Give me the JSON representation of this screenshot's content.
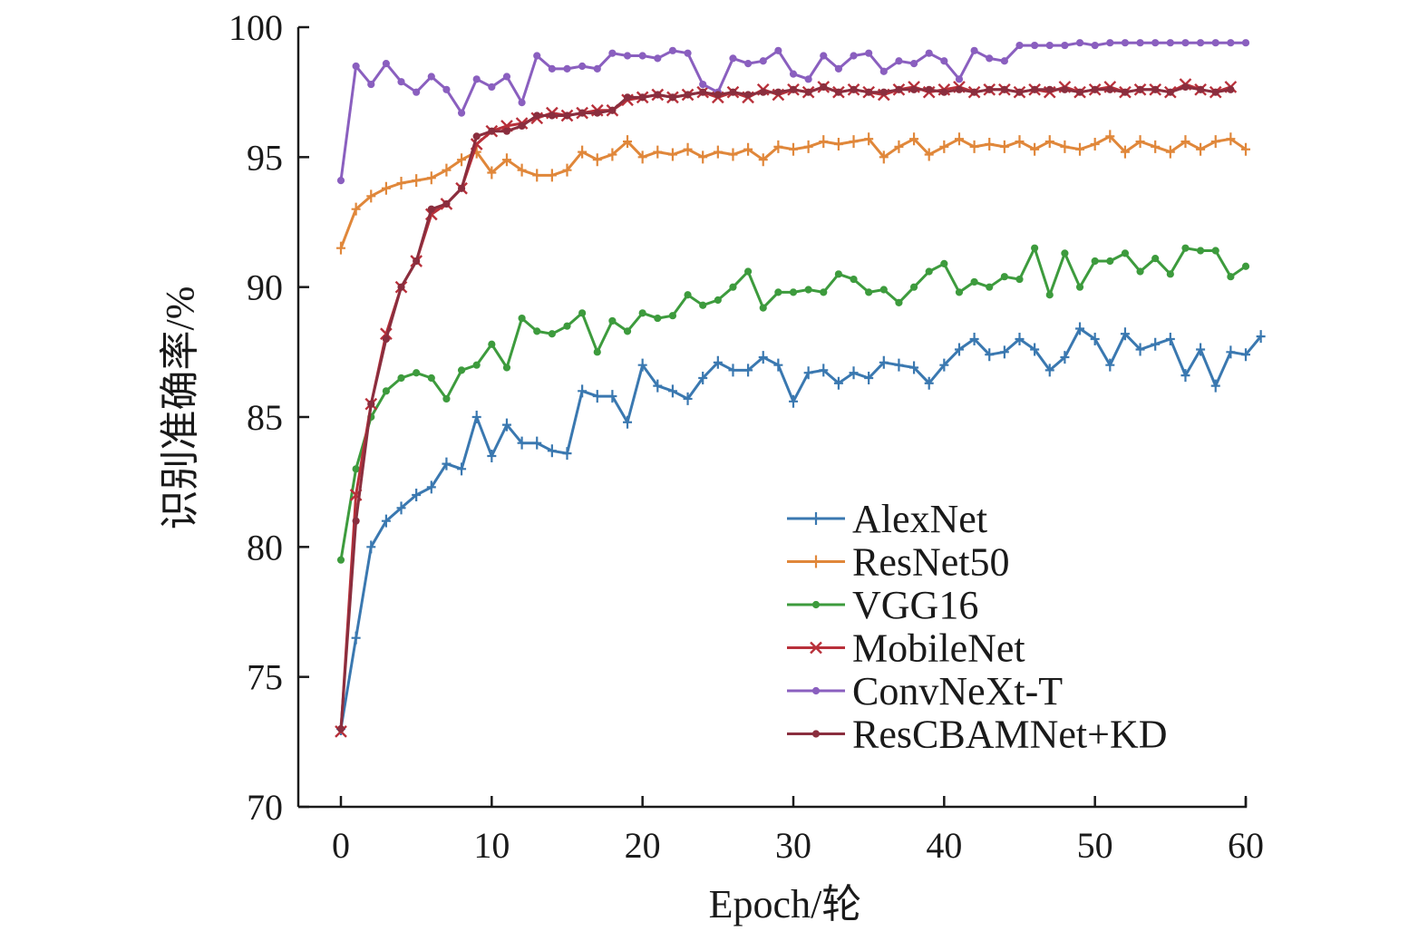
{
  "chart_data": {
    "type": "line",
    "xlabel": "Epoch/轮",
    "ylabel": "识别准确率/%",
    "xlim": [
      0,
      60
    ],
    "ylim": [
      70,
      100
    ],
    "xticks": [
      0,
      10,
      20,
      30,
      40,
      50,
      60
    ],
    "yticks": [
      70,
      75,
      80,
      85,
      90,
      95,
      100
    ],
    "legend_position": "lower-right",
    "grid": false,
    "series": [
      {
        "name": "AlexNet",
        "color": "#3a78b0",
        "marker": "plus",
        "values": [
          73.0,
          76.5,
          80.0,
          81.0,
          81.5,
          82.0,
          82.3,
          83.2,
          83.0,
          85.0,
          83.5,
          84.7,
          84.0,
          84.0,
          83.7,
          83.6,
          86.0,
          85.8,
          85.8,
          84.8,
          87.0,
          86.2,
          86.0,
          85.7,
          86.5,
          87.1,
          86.8,
          86.8,
          87.3,
          87.0,
          85.6,
          86.7,
          86.8,
          86.3,
          86.7,
          86.5,
          87.1,
          87.0,
          86.9,
          86.3,
          87.0,
          87.6,
          88.0,
          87.4,
          87.5,
          88.0,
          87.6,
          86.8,
          87.3,
          88.4,
          88.0,
          87.0,
          88.2,
          87.6,
          87.8,
          88.0,
          86.6,
          87.6,
          86.2,
          87.5,
          87.4,
          88.1
        ]
      },
      {
        "name": "ResNet50",
        "color": "#e0873a",
        "marker": "plus",
        "values": [
          91.5,
          93.0,
          93.5,
          93.8,
          94.0,
          94.1,
          94.2,
          94.5,
          94.9,
          95.2,
          94.4,
          94.9,
          94.5,
          94.3,
          94.3,
          94.5,
          95.2,
          94.9,
          95.1,
          95.6,
          95.0,
          95.2,
          95.1,
          95.3,
          95.0,
          95.2,
          95.1,
          95.3,
          94.9,
          95.4,
          95.3,
          95.4,
          95.6,
          95.5,
          95.6,
          95.7,
          95.0,
          95.4,
          95.7,
          95.1,
          95.4,
          95.7,
          95.4,
          95.5,
          95.4,
          95.6,
          95.3,
          95.6,
          95.4,
          95.3,
          95.5,
          95.8,
          95.2,
          95.6,
          95.4,
          95.2,
          95.6,
          95.3,
          95.6,
          95.7,
          95.3
        ]
      },
      {
        "name": "VGG16",
        "color": "#3d9b3d",
        "marker": "dot",
        "values": [
          79.5,
          83.0,
          85.0,
          86.0,
          86.5,
          86.7,
          86.5,
          85.7,
          86.8,
          87.0,
          87.8,
          86.9,
          88.8,
          88.3,
          88.2,
          88.5,
          89.0,
          87.5,
          88.7,
          88.3,
          89.0,
          88.8,
          88.9,
          89.7,
          89.3,
          89.5,
          90.0,
          90.6,
          89.2,
          89.8,
          89.8,
          89.9,
          89.8,
          90.5,
          90.3,
          89.8,
          89.9,
          89.4,
          90.0,
          90.6,
          90.9,
          89.8,
          90.2,
          90.0,
          90.4,
          90.3,
          91.5,
          89.7,
          91.3,
          90.0,
          91.0,
          91.0,
          91.3,
          90.6,
          91.1,
          90.5,
          91.5,
          91.4,
          91.4,
          90.4,
          90.8
        ]
      },
      {
        "name": "MobileNet",
        "color": "#b8303a",
        "marker": "x",
        "values": [
          72.9,
          82.0,
          85.5,
          88.2,
          90.0,
          91.0,
          92.8,
          93.2,
          93.8,
          95.5,
          96.0,
          96.2,
          96.3,
          96.5,
          96.7,
          96.6,
          96.7,
          96.8,
          96.8,
          97.2,
          97.3,
          97.4,
          97.3,
          97.4,
          97.5,
          97.3,
          97.5,
          97.3,
          97.6,
          97.4,
          97.6,
          97.5,
          97.7,
          97.5,
          97.6,
          97.5,
          97.4,
          97.6,
          97.7,
          97.5,
          97.6,
          97.7,
          97.5,
          97.6,
          97.6,
          97.5,
          97.6,
          97.5,
          97.7,
          97.5,
          97.6,
          97.7,
          97.5,
          97.6,
          97.6,
          97.5,
          97.8,
          97.6,
          97.5,
          97.7
        ]
      },
      {
        "name": "ConvNeXt-T",
        "color": "#8a5fbf",
        "marker": "dot",
        "values": [
          94.1,
          98.5,
          97.8,
          98.6,
          97.9,
          97.5,
          98.1,
          97.6,
          96.7,
          98.0,
          97.7,
          98.1,
          97.1,
          98.9,
          98.4,
          98.4,
          98.5,
          98.4,
          99.0,
          98.9,
          98.9,
          98.8,
          99.1,
          99.0,
          97.8,
          97.5,
          98.8,
          98.6,
          98.7,
          99.1,
          98.2,
          98.0,
          98.9,
          98.4,
          98.9,
          99.0,
          98.3,
          98.7,
          98.6,
          99.0,
          98.7,
          98.0,
          99.1,
          98.8,
          98.7,
          99.3,
          99.3,
          99.3,
          99.3,
          99.4,
          99.3,
          99.4,
          99.4,
          99.4,
          99.4,
          99.4,
          99.4,
          99.4,
          99.4,
          99.4,
          99.4
        ]
      },
      {
        "name": "ResCBAMNet+KD",
        "color": "#8a2e3e",
        "marker": "dot",
        "values": [
          73.0,
          81.0,
          85.5,
          88.0,
          90.0,
          91.0,
          93.0,
          93.2,
          93.8,
          95.8,
          96.0,
          96.0,
          96.2,
          96.6,
          96.6,
          96.6,
          96.7,
          96.7,
          96.8,
          97.3,
          97.3,
          97.4,
          97.3,
          97.4,
          97.5,
          97.4,
          97.5,
          97.4,
          97.5,
          97.5,
          97.6,
          97.5,
          97.7,
          97.5,
          97.6,
          97.5,
          97.5,
          97.6,
          97.6,
          97.6,
          97.5,
          97.6,
          97.5,
          97.6,
          97.6,
          97.5,
          97.6,
          97.6,
          97.6,
          97.5,
          97.6,
          97.6,
          97.5,
          97.6,
          97.6,
          97.5,
          97.7,
          97.6,
          97.5,
          97.6
        ]
      }
    ]
  }
}
